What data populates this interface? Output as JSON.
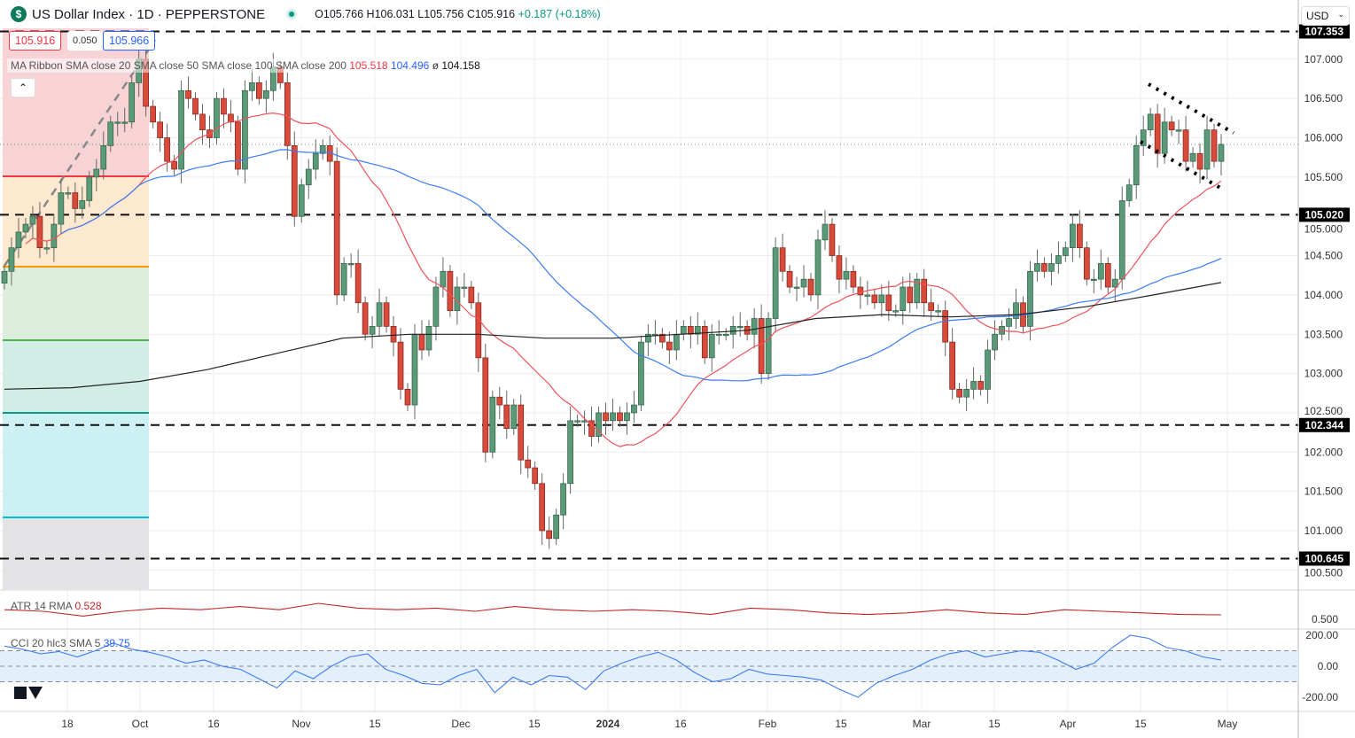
{
  "header": {
    "title": "US Dollar Index · 1D · PEPPERSTONE",
    "logo": "$",
    "open": "O105.766",
    "high": "H106.031",
    "low": "L105.756",
    "close": "C105.916",
    "change": "+0.187 (+0.18%)"
  },
  "price_boxes": {
    "sell": "105.916",
    "spread": "0.050",
    "buy": "105.966"
  },
  "legend": {
    "label": "MA Ribbon SMA close 20 SMA close 50 SMA close 100 SMA close 200",
    "v1": "105.518",
    "v2": "104.496",
    "v3": "ø",
    "v4": "104.158"
  },
  "collapse_icon": "chevron-up-icon",
  "currency": "USD",
  "atr": {
    "label": "ATR 14 RMA",
    "value": "0.528",
    "axis": "0.500"
  },
  "cci": {
    "label": "CCI 20 hlc3 SMA 5",
    "value": "39.75",
    "axis": [
      "200.00",
      "0.00",
      "-200.00"
    ]
  },
  "tv_logo": "TV",
  "colors": {
    "up": "#5b9a78",
    "down": "#d84a3a",
    "sma20": "#f0525a",
    "sma50": "#3b7bf5",
    "sma200": "#222222",
    "cci": "#3b7bf5",
    "atr": "#c0282a"
  },
  "chart_data": {
    "type": "candlestick",
    "title": "US Dollar Index · 1D · PEPPERSTONE",
    "ylim": [
      100.4,
      107.4
    ],
    "y_ticks": [
      "107.000",
      "106.500",
      "106.000",
      "105.500",
      "105.000",
      "104.500",
      "104.000",
      "103.500",
      "103.000",
      "102.500",
      "102.000",
      "101.500",
      "101.000",
      "100.500"
    ],
    "x_ticks": [
      "18",
      "Oct",
      "16",
      "Nov",
      "15",
      "Dec",
      "15",
      "2024",
      "16",
      "Feb",
      "15",
      "Mar",
      "15",
      "Apr",
      "15",
      "May"
    ],
    "levels": [
      {
        "label": "107.353",
        "value": 107.353
      },
      {
        "label": "105.020",
        "value": 105.02
      },
      {
        "label": "102.344",
        "value": 102.344
      },
      {
        "label": "100.645",
        "value": 100.645
      }
    ],
    "last_price": 105.916,
    "fib_levels": [
      105.52,
      104.37,
      103.44,
      102.52,
      101.19
    ],
    "closes": [
      104.3,
      104.6,
      104.8,
      104.9,
      105.0,
      104.6,
      104.6,
      104.9,
      105.3,
      105.3,
      105.1,
      105.2,
      105.5,
      105.6,
      105.9,
      106.2,
      106.2,
      106.2,
      106.7,
      107.0,
      106.4,
      106.2,
      106.0,
      105.7,
      105.6,
      106.6,
      106.5,
      106.3,
      106.1,
      106.0,
      106.5,
      106.3,
      106.2,
      105.6,
      106.6,
      106.7,
      106.5,
      106.6,
      106.9,
      106.7,
      105.9,
      105.0,
      105.4,
      105.6,
      105.8,
      105.9,
      105.7,
      104.0,
      104.4,
      104.4,
      103.9,
      103.5,
      103.6,
      103.9,
      103.6,
      103.4,
      102.8,
      102.6,
      103.5,
      103.3,
      103.6,
      104.1,
      104.3,
      103.8,
      104.1,
      104.1,
      103.9,
      103.2,
      102.0,
      102.7,
      102.6,
      102.3,
      102.6,
      101.9,
      101.8,
      101.6,
      101.0,
      100.9,
      101.2,
      101.6,
      102.4,
      102.4,
      102.4,
      102.2,
      102.5,
      102.4,
      102.5,
      102.4,
      102.5,
      102.6,
      103.4,
      103.5,
      103.5,
      103.4,
      103.3,
      103.5,
      103.6,
      103.5,
      103.6,
      103.2,
      103.5,
      103.5,
      103.5,
      103.6,
      103.6,
      103.5,
      103.7,
      103.0,
      103.7,
      104.6,
      104.3,
      104.1,
      104.1,
      104.2,
      104.0,
      104.7,
      104.9,
      104.5,
      104.2,
      104.3,
      104.1,
      104.0,
      104.0,
      103.9,
      104.0,
      103.8,
      103.8,
      104.1,
      103.9,
      104.2,
      103.9,
      103.8,
      103.8,
      103.4,
      102.8,
      102.7,
      102.8,
      102.9,
      102.8,
      103.3,
      103.5,
      103.6,
      103.7,
      103.9,
      103.6,
      104.3,
      104.4,
      104.3,
      104.4,
      104.5,
      104.6,
      104.9,
      104.6,
      104.2,
      104.2,
      104.4,
      104.1,
      104.2,
      105.2,
      105.4,
      105.9,
      106.1,
      106.3,
      105.8,
      106.2,
      106.1,
      106.1,
      105.7,
      105.8,
      105.6,
      106.1,
      105.7,
      105.916
    ],
    "sma200": [
      102.8,
      102.82,
      102.9,
      103.05,
      103.25,
      103.45,
      103.5,
      103.5,
      103.45,
      103.45,
      103.5,
      103.55,
      103.7,
      103.75,
      103.72,
      103.75,
      103.85,
      104.0,
      104.158
    ],
    "atr": [
      0.56,
      0.55,
      0.52,
      0.55,
      0.57,
      0.56,
      0.58,
      0.56,
      0.6,
      0.57,
      0.56,
      0.57,
      0.55,
      0.58,
      0.56,
      0.55,
      0.56,
      0.55,
      0.53,
      0.57,
      0.56,
      0.54,
      0.53,
      0.54,
      0.56,
      0.54,
      0.53,
      0.56,
      0.55,
      0.54,
      0.53,
      0.528
    ],
    "cci": [
      130,
      110,
      80,
      95,
      60,
      100,
      150,
      110,
      90,
      60,
      20,
      40,
      0,
      -20,
      -80,
      -140,
      -30,
      -80,
      0,
      60,
      80,
      -20,
      -60,
      -110,
      -120,
      -60,
      -20,
      -170,
      -70,
      -120,
      -60,
      -70,
      -150,
      -30,
      20,
      60,
      90,
      40,
      -40,
      -100,
      -80,
      -20,
      -50,
      -60,
      -70,
      -90,
      -150,
      -200,
      -110,
      -60,
      -20,
      40,
      80,
      100,
      60,
      80,
      100,
      90,
      40,
      -20,
      20,
      120,
      200,
      180,
      120,
      100,
      60,
      39.75
    ]
  }
}
